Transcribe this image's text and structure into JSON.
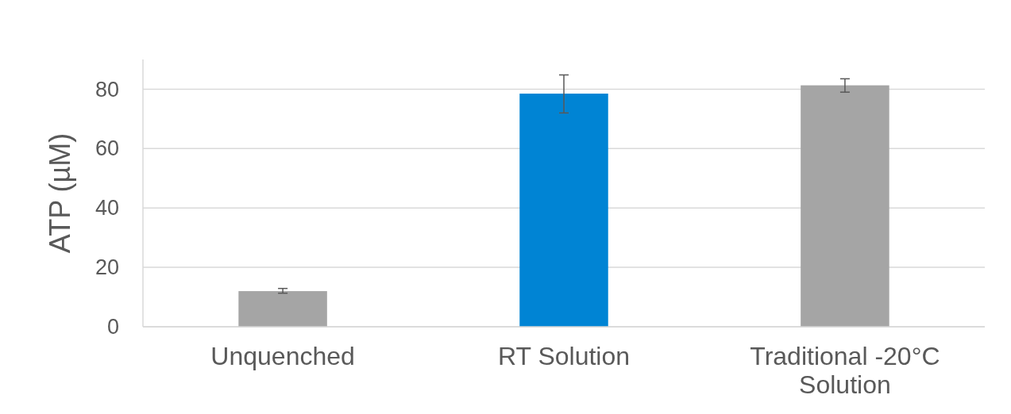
{
  "chart_data": {
    "type": "bar",
    "ylabel": "ATP (µM)",
    "categories": [
      "Unquenched",
      "RT Solution",
      "Traditional -20°C Solution"
    ],
    "values": [
      12,
      78.5,
      81.3
    ],
    "colors": [
      "#a5a5a5",
      "#0084d4",
      "#a5a5a5"
    ],
    "errors": [
      [
        11.3,
        12.9
      ],
      [
        72,
        84.8
      ],
      [
        79,
        83.5
      ]
    ],
    "ylim": [
      0,
      90
    ],
    "yticks": [
      0,
      20,
      40,
      60,
      80
    ],
    "grid": "y"
  }
}
